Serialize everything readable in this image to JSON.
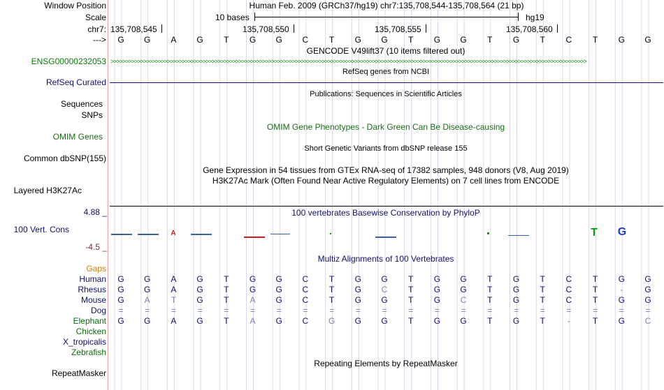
{
  "header": {
    "window_position_label": "Window Position",
    "scale_label": "Scale",
    "chr_label": "chr7:",
    "strand_label": "--->",
    "assembly_info": "Human Feb. 2009 (GRCh37/hg19)   chr7:135,708,544-135,708,564 (21 bp)",
    "scale_text": "10 bases",
    "db": "hg19",
    "positions": [
      "135,708,545",
      "135,708,550",
      "135,708,555",
      "135,708,560"
    ]
  },
  "sequence": [
    "G",
    "G",
    "A",
    "G",
    "T",
    "G",
    "G",
    "C",
    "T",
    "G",
    "G",
    "T",
    "G",
    "G",
    "T",
    "G",
    "T",
    "C",
    "T",
    "G",
    "G"
  ],
  "tracks": {
    "gencode": {
      "title": "GENCODE V49lift37 (10 items filtered out)",
      "label": "ENSG00000232053"
    },
    "refseq": {
      "title": "RefSeq genes from NCBI",
      "label": "RefSeq Curated"
    },
    "publications": {
      "title": "Publications: Sequences in Scientific Articles",
      "label1": "Sequences",
      "label2": "SNPs"
    },
    "omim": {
      "title": "OMIM Gene Phenotypes - Dark Green Can Be Disease-causing",
      "label": "OMIM Genes"
    },
    "dbsnp": {
      "title": "Short Genetic Variants from dbSNP release 155",
      "label": "Common dbSNP(155)"
    },
    "gtex": {
      "title": "Gene Expression in 54 tissues from GTEx RNA-seq of 17382 samples, 948 donors (V8, Aug 2019)"
    },
    "h3k27ac": {
      "title": "H3K27Ac Mark (Often Found Near Active Regulatory Elements) on 7 cell lines from ENCODE",
      "label": "Layered H3K27Ac"
    },
    "phylop": {
      "title": "100 vertebrates Basewise Conservation by PhyloP",
      "label": "100 Vert. Cons",
      "max": "4.88 _",
      "min": "-4.5 _"
    },
    "multiz": {
      "title": "Multiz Alignments of 100 Vertebrates",
      "gaps_label": "Gaps"
    },
    "repeatmasker": {
      "title": "Repeating Elements by RepeatMasker",
      "label": "RepeatMasker"
    }
  },
  "alignment": [
    {
      "species": "Human",
      "bases": [
        "G",
        "G",
        "A",
        "G",
        "T",
        "G",
        "G",
        "C",
        "T",
        "G",
        "G",
        "T",
        "G",
        "G",
        "T",
        "G",
        "T",
        "C",
        "T",
        "G",
        "G"
      ]
    },
    {
      "species": "Rhesus",
      "bases": [
        "G",
        "G",
        "A",
        "G",
        "T",
        "G",
        "G",
        "C",
        "T",
        "G",
        "C",
        "T",
        "G",
        "G",
        "T",
        "G",
        "T",
        "C",
        "T",
        "-",
        "G"
      ]
    },
    {
      "species": "Mouse",
      "bases": [
        "G",
        "A",
        "T",
        "G",
        "T",
        "A",
        "G",
        "C",
        "T",
        "G",
        "G",
        "T",
        "G",
        "C",
        "T",
        "G",
        "T",
        "C",
        "T",
        "G",
        "G"
      ]
    },
    {
      "species": "Dog",
      "bases": [
        "=",
        "=",
        "=",
        "=",
        "=",
        "=",
        "=",
        "=",
        "=",
        "=",
        "=",
        "=",
        "=",
        "=",
        "=",
        "=",
        "=",
        "=",
        "=",
        "=",
        "="
      ]
    },
    {
      "species": "Elephant",
      "bases": [
        "G",
        "G",
        "A",
        "G",
        "T",
        "A",
        "G",
        "C",
        "G",
        "G",
        "G",
        "T",
        "G",
        "G",
        "T",
        "G",
        "T",
        "-",
        "T",
        "G",
        "C"
      ]
    },
    {
      "species": "Chicken",
      "bases": []
    },
    {
      "species": "X_tropicalis",
      "bases": []
    },
    {
      "species": "Zebrafish",
      "bases": []
    }
  ],
  "colors": {
    "navy": "#101070",
    "green": "#0a7d0a",
    "dark_green": "#1a6b1a",
    "gaps_orange": "#d08000",
    "phylop_min": "#8b2a2a",
    "faded_base": "#8080b0",
    "grid": "#d8d8ec"
  }
}
